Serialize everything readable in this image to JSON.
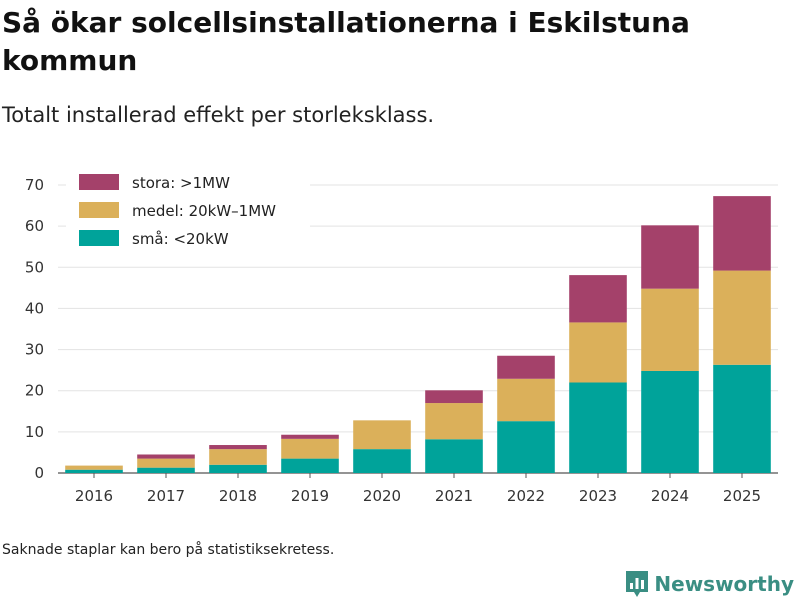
{
  "header": {
    "title": "Så ökar solcellsinstallationerna i Eskilstuna kommun",
    "subtitle": "Totalt installerad effekt per storleksklass."
  },
  "footer": {
    "note": "Saknade staplar kan bero på statistiksekretess.",
    "brand": "Newsworthy"
  },
  "colors": {
    "stora": "#a4416a",
    "medel": "#dbb05a",
    "sma": "#00a39a",
    "grid": "#e3e3e3",
    "brand": "#3a8e83"
  },
  "chart_data": {
    "type": "bar",
    "stacked": true,
    "categories": [
      "2016",
      "2017",
      "2018",
      "2019",
      "2020",
      "2021",
      "2022",
      "2023",
      "2024",
      "2025"
    ],
    "series": [
      {
        "key": "sma",
        "name": "små: <20kW",
        "values": [
          0.8,
          1.3,
          2.0,
          3.5,
          5.8,
          8.2,
          12.6,
          22.0,
          24.8,
          26.3
        ]
      },
      {
        "key": "medel",
        "name": "medel: 20kW–1MW",
        "values": [
          1.0,
          2.2,
          3.8,
          4.8,
          7.0,
          8.8,
          10.3,
          14.6,
          20.0,
          22.9
        ]
      },
      {
        "key": "stora",
        "name": "stora: >1MW",
        "values": [
          0.0,
          1.0,
          1.0,
          1.0,
          0.0,
          3.1,
          5.6,
          11.5,
          15.4,
          18.1
        ]
      }
    ],
    "legend_order": [
      "stora",
      "medel",
      "sma"
    ],
    "yticks": [
      0,
      10,
      20,
      30,
      40,
      50,
      60,
      70
    ],
    "ylim": [
      0,
      70
    ],
    "xlabel": "",
    "ylabel": "",
    "grid": true,
    "legend_position": "top-left"
  }
}
